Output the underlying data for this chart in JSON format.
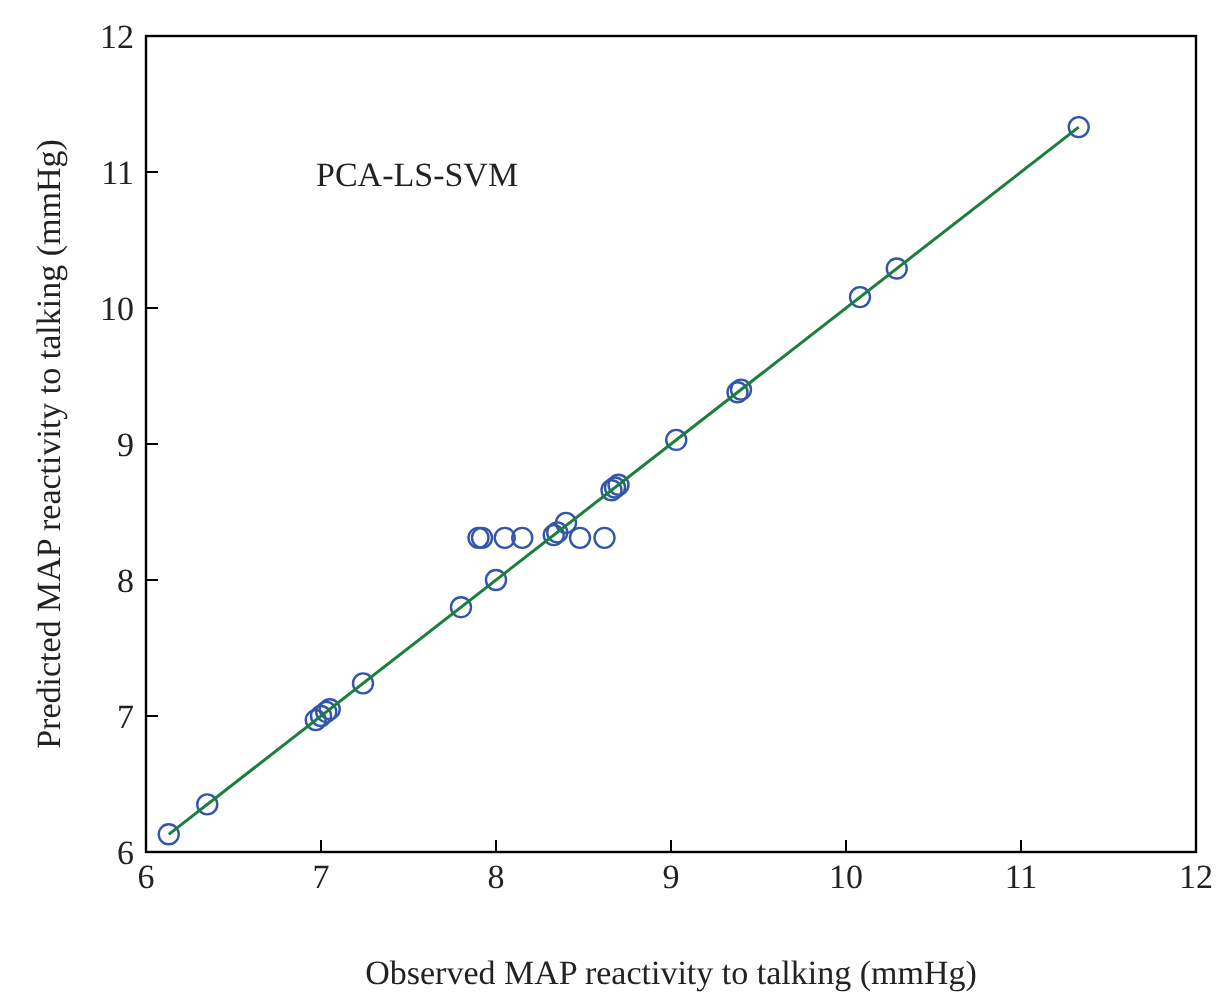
{
  "chart_data": {
    "type": "scatter",
    "xlabel": "Observed MAP reactivity to talking (mmHg)",
    "ylabel": "Predicted MAP reactivity to talking (mmHg)",
    "annotations": [
      "PCA-LS-SVM"
    ],
    "xlim": [
      6,
      12
    ],
    "ylim": [
      6,
      12
    ],
    "xticks": [
      6,
      7,
      8,
      9,
      10,
      11,
      12
    ],
    "yticks": [
      6,
      7,
      8,
      9,
      10,
      11,
      12
    ],
    "grid": false,
    "legend": false,
    "series": [
      {
        "color": "#3355aa",
        "marker": "circle",
        "x": [
          6.13,
          6.35,
          6.97,
          7.0,
          7.03,
          7.05,
          7.24,
          7.8,
          8.0,
          7.9,
          7.92,
          8.05,
          8.15,
          8.33,
          8.35,
          8.4,
          8.48,
          8.62,
          8.66,
          8.68,
          8.7,
          9.03,
          9.38,
          9.4,
          10.08,
          10.29,
          11.33
        ],
        "values": [
          6.13,
          6.35,
          6.97,
          7.0,
          7.03,
          7.05,
          7.24,
          7.8,
          8.0,
          8.31,
          8.31,
          8.31,
          8.31,
          8.33,
          8.35,
          8.42,
          8.31,
          8.31,
          8.66,
          8.68,
          8.7,
          9.03,
          9.38,
          9.4,
          10.08,
          10.29,
          11.33
        ]
      },
      {
        "type": "line",
        "color": "#1a7f3a",
        "marker": "none",
        "line_style": "solid",
        "x": [
          6.13,
          11.33
        ],
        "values": [
          6.13,
          11.33
        ]
      }
    ]
  }
}
